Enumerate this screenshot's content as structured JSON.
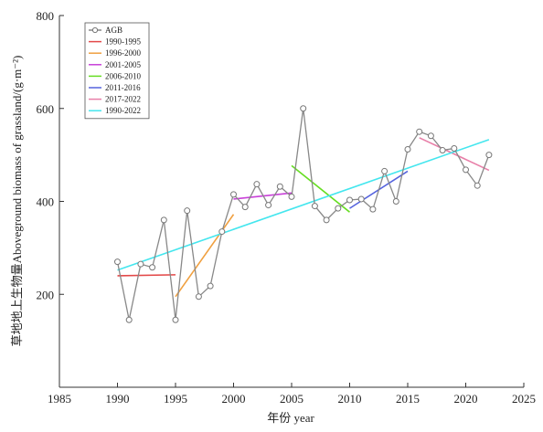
{
  "chart_data": {
    "type": "line",
    "title": "",
    "xlabel": "年份 year",
    "ylabel": "草地地上生物量Aboveground biomass of grassland/(g·m⁻²)",
    "xlim": [
      1985,
      2025
    ],
    "ylim": [
      0,
      800
    ],
    "xticks": [
      1985,
      1990,
      1995,
      2000,
      2005,
      2010,
      2015,
      2020,
      2025
    ],
    "yticks": [
      200,
      400,
      600,
      800
    ],
    "grid": false,
    "legend_position": "top-left",
    "series": [
      {
        "name": "AGB",
        "color": "#888888",
        "marker": "circle",
        "x": [
          1990,
          1991,
          1992,
          1993,
          1994,
          1995,
          1996,
          1997,
          1998,
          1999,
          2000,
          2001,
          2002,
          2003,
          2004,
          2005,
          2006,
          2007,
          2008,
          2009,
          2010,
          2011,
          2012,
          2013,
          2014,
          2015,
          2016,
          2017,
          2018,
          2019,
          2020,
          2021,
          2022
        ],
        "y": [
          270,
          145,
          265,
          258,
          360,
          145,
          380,
          195,
          218,
          335,
          415,
          388,
          437,
          392,
          432,
          410,
          600,
          390,
          360,
          385,
          403,
          405,
          383,
          465,
          400,
          512,
          550,
          541,
          510,
          514,
          468,
          434,
          500
        ]
      },
      {
        "name": "1990-1995",
        "color": "#e34848",
        "x": [
          1990,
          1995
        ],
        "y": [
          240,
          242
        ]
      },
      {
        "name": "1996-2000",
        "color": "#f0a040",
        "x": [
          1995,
          2000
        ],
        "y": [
          195,
          372
        ]
      },
      {
        "name": "2001-2005",
        "color": "#c840d8",
        "x": [
          2000,
          2005
        ],
        "y": [
          405,
          418
        ]
      },
      {
        "name": "2006-2010",
        "color": "#66dd22",
        "x": [
          2005,
          2010
        ],
        "y": [
          477,
          377
        ]
      },
      {
        "name": "2011-2016",
        "color": "#5563dd",
        "x": [
          2010,
          2015
        ],
        "y": [
          385,
          465
        ]
      },
      {
        "name": "2017-2022",
        "color": "#e87fa8",
        "x": [
          2016,
          2022
        ],
        "y": [
          537,
          467
        ]
      },
      {
        "name": "1990-2022",
        "color": "#44e6ee",
        "x": [
          1990,
          2022
        ],
        "y": [
          252,
          533
        ]
      }
    ]
  }
}
